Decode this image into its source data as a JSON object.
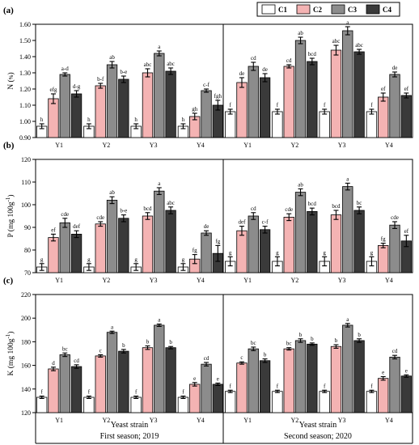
{
  "legend": {
    "items": [
      {
        "label": "C1",
        "color": "#ffffff"
      },
      {
        "label": "C2",
        "color": "#f4b3b3"
      },
      {
        "label": "C3",
        "color": "#8c8c8c"
      },
      {
        "label": "C4",
        "color": "#3a3a3a"
      }
    ]
  },
  "groups": [
    {
      "label": "Y1"
    },
    {
      "label": "Y2"
    },
    {
      "label": "Y3"
    },
    {
      "label": "Y4"
    },
    {
      "label": "Y1"
    },
    {
      "label": "Y2"
    },
    {
      "label": "Y3"
    },
    {
      "label": "Y4"
    }
  ],
  "seasons": [
    {
      "xlabel": "Yeast strain",
      "name": "First season; 2019"
    },
    {
      "xlabel": "Yeast strain",
      "name": "Second season; 2020"
    }
  ],
  "chart_data": [
    {
      "type": "bar",
      "panel": "(a)",
      "ylabel_main": "N (",
      "ylabel_unit": "%",
      "ylabel_end": ")",
      "ylim": [
        0.9,
        1.6
      ],
      "yticks": [
        "0.90",
        "1.00",
        "1.10",
        "1.20",
        "1.30",
        "1.40",
        "1.50",
        "1.60"
      ],
      "categories": [
        "Y1",
        "Y2",
        "Y3",
        "Y4",
        "Y1",
        "Y2",
        "Y3",
        "Y4"
      ],
      "series": [
        {
          "name": "C1",
          "values": [
            0.97,
            0.97,
            0.97,
            0.97,
            1.06,
            1.06,
            1.06,
            1.06
          ],
          "errors": [
            0.015,
            0.015,
            0.015,
            0.015,
            0.015,
            0.015,
            0.015,
            0.015
          ],
          "labels": [
            "h",
            "h",
            "h",
            "h",
            "f",
            "f",
            "f",
            "f"
          ]
        },
        {
          "name": "C2",
          "values": [
            1.14,
            1.22,
            1.3,
            1.03,
            1.24,
            1.34,
            1.44,
            1.15
          ],
          "errors": [
            0.03,
            0.015,
            0.025,
            0.02,
            0.03,
            0.01,
            0.03,
            0.025
          ],
          "labels": [
            "efg",
            "b-f",
            "abc",
            "gh",
            "de",
            "cd",
            "abc",
            "ef"
          ]
        },
        {
          "name": "C3",
          "values": [
            1.29,
            1.35,
            1.42,
            1.19,
            1.34,
            1.5,
            1.56,
            1.29
          ],
          "errors": [
            0.01,
            0.02,
            0.015,
            0.01,
            0.025,
            0.02,
            0.025,
            0.015
          ],
          "labels": [
            "a-d",
            "ab",
            "a",
            "c-f",
            "cd",
            "ab",
            "a",
            "de"
          ]
        },
        {
          "name": "C4",
          "values": [
            1.17,
            1.26,
            1.31,
            1.1,
            1.27,
            1.37,
            1.43,
            1.16
          ],
          "errors": [
            0.02,
            0.02,
            0.02,
            0.03,
            0.025,
            0.02,
            0.015,
            0.015
          ],
          "labels": [
            "d-g",
            "b-e",
            "abc",
            "fgh",
            "de",
            "bcd",
            "abc",
            "ef"
          ]
        }
      ]
    },
    {
      "type": "bar",
      "panel": "(b)",
      "ylabel_main": "P (mg 100g",
      "ylabel_unit": "-1",
      "ylabel_end": ")",
      "ylim": [
        70,
        120
      ],
      "yticks": [
        "70",
        "80",
        "90",
        "100",
        "110",
        "120"
      ],
      "categories": [
        "Y1",
        "Y2",
        "Y3",
        "Y4",
        "Y1",
        "Y2",
        "Y3",
        "Y4"
      ],
      "series": [
        {
          "name": "C1",
          "values": [
            72.5,
            72.5,
            72.5,
            72.5,
            75,
            75,
            75,
            75
          ],
          "errors": [
            1.5,
            1.5,
            1.5,
            1.5,
            2,
            2,
            2,
            2
          ],
          "labels": [
            "g",
            "g",
            "g",
            "g",
            "g",
            "g",
            "g",
            "g"
          ]
        },
        {
          "name": "C2",
          "values": [
            85.5,
            91.5,
            95,
            76,
            88.5,
            94.5,
            95.5,
            82
          ],
          "errors": [
            1.5,
            1,
            1.5,
            2,
            2,
            1.5,
            2,
            1
          ],
          "labels": [
            "ef",
            "cde",
            "bcd",
            "fg",
            "def",
            "cde",
            "bcd",
            "fg"
          ]
        },
        {
          "name": "C3",
          "values": [
            92,
            102,
            106,
            87.5,
            95,
            105.5,
            108,
            91
          ],
          "errors": [
            2,
            1.5,
            1.5,
            1,
            1.5,
            1.5,
            1.5,
            1.5
          ],
          "labels": [
            "cde",
            "ab",
            "a",
            "de",
            "cd",
            "ab",
            "a",
            "cde"
          ]
        },
        {
          "name": "C4",
          "values": [
            87,
            94,
            97.5,
            78.5,
            89,
            97,
            97.5,
            84
          ],
          "errors": [
            1.5,
            1.5,
            1.5,
            3.5,
            1.5,
            1.5,
            1.5,
            2.5
          ],
          "labels": [
            "def",
            "b-e",
            "abc",
            "fg",
            "c-f",
            "bcd",
            "bc",
            "ef"
          ]
        }
      ]
    },
    {
      "type": "bar",
      "panel": "(c)",
      "ylabel_main": "K (mg 100g",
      "ylabel_unit": "-1",
      "ylabel_end": ")",
      "ylim": [
        120,
        220
      ],
      "yticks": [
        "120",
        "140",
        "160",
        "180",
        "200",
        "220"
      ],
      "categories": [
        "Y1",
        "Y2",
        "Y3",
        "Y4",
        "Y1",
        "Y2",
        "Y3",
        "Y4"
      ],
      "series": [
        {
          "name": "C1",
          "values": [
            133,
            133,
            133,
            133,
            138,
            138,
            138,
            138
          ],
          "errors": [
            1,
            1,
            1,
            1,
            1,
            1,
            1,
            1
          ],
          "labels": [
            "f",
            "f",
            "f",
            "f",
            "f",
            "f",
            "f",
            "f"
          ]
        },
        {
          "name": "C2",
          "values": [
            157,
            168,
            175,
            144,
            162,
            174,
            176,
            149
          ],
          "errors": [
            1.5,
            1,
            1.5,
            1.5,
            1,
            1,
            1.5,
            1.5
          ],
          "labels": [
            "d",
            "c",
            "b",
            "e",
            "c",
            "bc",
            "b",
            "e"
          ]
        },
        {
          "name": "C3",
          "values": [
            169,
            188,
            194,
            161,
            174,
            181,
            194,
            167
          ],
          "errors": [
            1.5,
            1,
            1,
            1.5,
            1.5,
            1.5,
            1.5,
            1.5
          ],
          "labels": [
            "bc",
            "a",
            "a",
            "cd",
            "bc",
            "b",
            "a",
            "cd"
          ]
        },
        {
          "name": "C4",
          "values": [
            159,
            172,
            175,
            144,
            164,
            178,
            181,
            151
          ],
          "errors": [
            1.5,
            1.5,
            1,
            1,
            1.5,
            1,
            1.5,
            1
          ],
          "labels": [
            "cd",
            "b",
            "b",
            "e",
            "b",
            "b",
            "b",
            "e"
          ]
        }
      ]
    }
  ]
}
